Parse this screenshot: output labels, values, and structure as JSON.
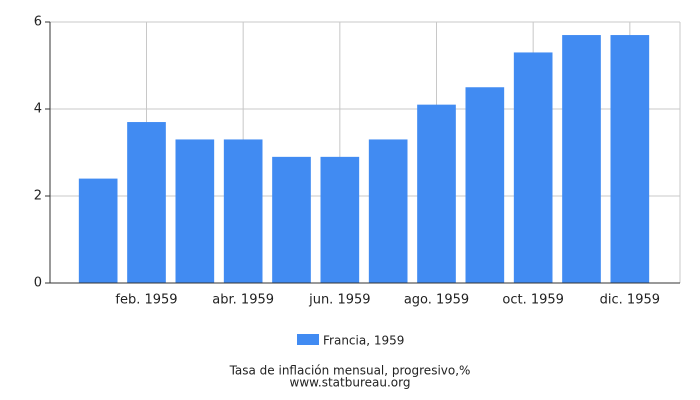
{
  "chart_data": {
    "type": "bar",
    "title": "Tasa de inflación mensual, progresivo,%",
    "subtitle": "www.statbureau.org",
    "categories": [
      null,
      "feb. 1959",
      null,
      "abr. 1959",
      null,
      "jun. 1959",
      null,
      "ago. 1959",
      null,
      "oct. 1959",
      null,
      "dic. 1959"
    ],
    "series": [
      {
        "name": "Francia, 1959",
        "color": "#418bf2",
        "values": [
          2.4,
          3.7,
          3.3,
          3.3,
          2.9,
          2.9,
          3.3,
          4.1,
          4.5,
          5.3,
          5.7,
          5.7
        ]
      }
    ],
    "ylim": [
      0,
      6
    ],
    "yticks": [
      0,
      2,
      4,
      6
    ],
    "grid": true
  }
}
